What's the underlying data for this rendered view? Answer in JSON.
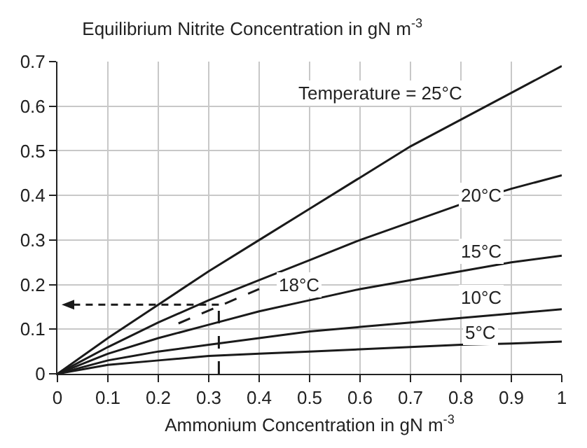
{
  "chart_data": {
    "type": "line",
    "title": "Equilibrium Nitrite Concentration in gN m$^{-3}$",
    "xlabel": "Ammonium Concentration in gN m$^{-3}$",
    "x": [
      0,
      0.1,
      0.2,
      0.3,
      0.4,
      0.5,
      0.6,
      0.7,
      0.8,
      0.9,
      1
    ],
    "series": [
      {
        "name": "Temperature = 25°C",
        "color": "#1a1a1a",
        "values": [
          0,
          0.08,
          0.155,
          0.23,
          0.3,
          0.37,
          0.44,
          0.51,
          0.57,
          0.63,
          0.69
        ]
      },
      {
        "name": "20°C",
        "color": "#1a1a1a",
        "values": [
          0,
          0.06,
          0.115,
          0.165,
          0.21,
          0.255,
          0.3,
          0.34,
          0.38,
          0.415,
          0.445
        ]
      },
      {
        "name": "15°C",
        "color": "#1a1a1a",
        "values": [
          0,
          0.045,
          0.08,
          0.11,
          0.14,
          0.165,
          0.19,
          0.21,
          0.23,
          0.25,
          0.265
        ]
      },
      {
        "name": "10°C",
        "color": "#1a1a1a",
        "values": [
          0,
          0.03,
          0.05,
          0.065,
          0.08,
          0.095,
          0.105,
          0.115,
          0.125,
          0.135,
          0.145
        ]
      },
      {
        "name": "5°C",
        "color": "#1a1a1a",
        "values": [
          0,
          0.02,
          0.03,
          0.04,
          0.045,
          0.05,
          0.055,
          0.06,
          0.065,
          0.068,
          0.072
        ]
      },
      {
        "name": "18°C",
        "color": "#1a1a1a",
        "line_style": "dashed",
        "x": [
          0.24,
          0.4
        ],
        "values": [
          0.113,
          0.19
        ]
      },
      {
        "color": "#1a1a1a",
        "line_style": "dashed",
        "x": [
          0.32,
          0.32
        ],
        "values": [
          0,
          0.155
        ]
      }
    ],
    "xlim": [
      0,
      1
    ],
    "xticks": [
      0,
      0.1,
      0.2,
      0.3,
      0.4,
      0.5,
      0.6,
      0.7,
      0.8,
      0.9,
      1
    ],
    "ylim": [
      0,
      0.7
    ],
    "yticks": [
      0,
      0.1,
      0.2,
      0.3,
      0.4,
      0.5,
      0.6,
      0.7
    ],
    "grid": true,
    "legend": false,
    "marker": "none",
    "line_style": "solid"
  }
}
